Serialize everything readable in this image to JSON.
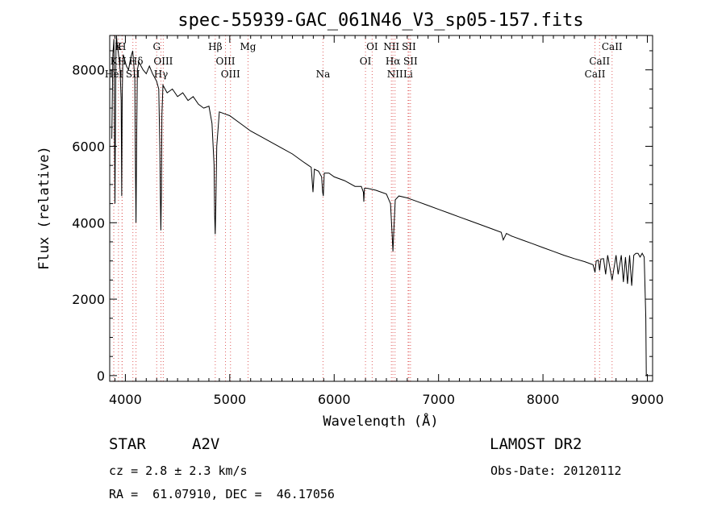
{
  "chart_data": {
    "type": "line",
    "title": "spec-55939-GAC_061N46_V3_sp05-157.fits",
    "xlabel": "Wavelength (Å)",
    "ylabel": "Flux (relative)",
    "xlim": [
      3850,
      9050
    ],
    "ylim": [
      -150,
      8900
    ],
    "xticks": [
      4000,
      5000,
      6000,
      7000,
      8000,
      9000
    ],
    "yticks": [
      0,
      2000,
      4000,
      6000,
      8000
    ],
    "grid": false,
    "line_color": "#000000",
    "marker_line_color": "#e06060",
    "series": [
      {
        "x": [
          3870,
          3880,
          3890,
          3895,
          3900,
          3905,
          3910,
          3915,
          3920,
          3930,
          3940,
          3950,
          3960,
          3965,
          3970,
          3975,
          3980,
          3990,
          4000,
          4010,
          4030,
          4050,
          4070,
          4090,
          4095,
          4102,
          4108,
          4115,
          4130,
          4150,
          4170,
          4200,
          4230,
          4260,
          4280,
          4300,
          4320,
          4330,
          4335,
          4340,
          4345,
          4350,
          4360,
          4380,
          4400,
          4450,
          4500,
          4550,
          4600,
          4650,
          4700,
          4750,
          4800,
          4830,
          4850,
          4855,
          4861,
          4867,
          4875,
          4900,
          4950,
          5000,
          5100,
          5200,
          5300,
          5400,
          5500,
          5600,
          5700,
          5780,
          5797,
          5810,
          5850,
          5880,
          5890,
          5896,
          5905,
          5950,
          6000,
          6100,
          6200,
          6260,
          6280,
          6284,
          6290,
          6320,
          6400,
          6500,
          6540,
          6555,
          6563,
          6570,
          6585,
          6620,
          6700,
          6800,
          6900,
          7000,
          7100,
          7200,
          7300,
          7400,
          7500,
          7600,
          7620,
          7650,
          7700,
          7800,
          7900,
          8000,
          8100,
          8200,
          8300,
          8400,
          8480,
          8498,
          8510,
          8530,
          8542,
          8555,
          8580,
          8600,
          8620,
          8662,
          8700,
          8720,
          8750,
          8770,
          8790,
          8810,
          8830,
          8850,
          8870,
          8890,
          8910,
          8930,
          8950,
          8970,
          8985,
          8990,
          8995,
          9000
        ],
        "y": [
          6200,
          8400,
          8800,
          7000,
          4500,
          6500,
          8600,
          8900,
          8700,
          8500,
          8300,
          8000,
          7200,
          4700,
          7300,
          8200,
          8400,
          8300,
          8200,
          8100,
          8000,
          8300,
          8500,
          7800,
          6000,
          4000,
          6200,
          8000,
          8200,
          8100,
          8000,
          7900,
          8100,
          7900,
          7800,
          7700,
          7500,
          6000,
          4700,
          3800,
          4800,
          6800,
          7600,
          7500,
          7400,
          7500,
          7300,
          7400,
          7200,
          7300,
          7100,
          7000,
          7050,
          6600,
          5500,
          4200,
          3700,
          4500,
          6000,
          6900,
          6850,
          6800,
          6600,
          6400,
          6250,
          6100,
          5950,
          5800,
          5600,
          5450,
          4800,
          5400,
          5350,
          5200,
          4800,
          4700,
          5300,
          5300,
          5200,
          5100,
          4950,
          4950,
          4800,
          4550,
          4900,
          4900,
          4850,
          4750,
          4500,
          3700,
          3250,
          3700,
          4600,
          4700,
          4650,
          4550,
          4450,
          4350,
          4250,
          4150,
          4050,
          3950,
          3850,
          3750,
          3550,
          3720,
          3650,
          3550,
          3450,
          3350,
          3250,
          3150,
          3060,
          2980,
          2900,
          2700,
          3000,
          3020,
          2750,
          3050,
          3060,
          2650,
          3150,
          2500,
          3150,
          2650,
          3150,
          2450,
          3100,
          2400,
          3150,
          2350,
          3150,
          3200,
          3200,
          3100,
          3200,
          3100,
          1500,
          0,
          0,
          0
        ]
      }
    ],
    "spectral_lines": [
      {
        "x": 3889,
        "label": "HeI",
        "row": 3
      },
      {
        "x": 3889,
        "label": "K",
        "row": 1
      },
      {
        "x": 3934,
        "label": "K",
        "row": 0
      },
      {
        "x": 3968,
        "label": "H",
        "row": 0
      },
      {
        "x": 3970,
        "label": "H",
        "row": 1
      },
      {
        "x": 4072,
        "label": "SII",
        "row": 3
      },
      {
        "x": 4102,
        "label": "Hδ",
        "row": 1
      },
      {
        "x": 4300,
        "label": "G",
        "row": 0
      },
      {
        "x": 4363,
        "label": "OIII",
        "row": 1
      },
      {
        "x": 4341,
        "label": "Hγ",
        "row": 3
      },
      {
        "x": 4861,
        "label": "Hβ",
        "row": 0
      },
      {
        "x": 4959,
        "label": "OIII",
        "row": 1
      },
      {
        "x": 5007,
        "label": "OIII",
        "row": 3
      },
      {
        "x": 5175,
        "label": "Mg",
        "row": 0
      },
      {
        "x": 5893,
        "label": "Na",
        "row": 3
      },
      {
        "x": 6300,
        "label": "OI",
        "row": 1
      },
      {
        "x": 6364,
        "label": "OI",
        "row": 0
      },
      {
        "x": 6548,
        "label": "NII",
        "row": 0
      },
      {
        "x": 6563,
        "label": "Hα",
        "row": 1
      },
      {
        "x": 6583,
        "label": "NII",
        "row": 3
      },
      {
        "x": 6716,
        "label": "SII",
        "row": 0
      },
      {
        "x": 6731,
        "label": "SII",
        "row": 1
      },
      {
        "x": 6708,
        "label": "Li",
        "row": 3
      },
      {
        "x": 8498,
        "label": "CaII",
        "row": 3
      },
      {
        "x": 8542,
        "label": "CaII",
        "row": 1
      },
      {
        "x": 8662,
        "label": "CaII",
        "row": 0
      }
    ]
  },
  "info": {
    "class_label": "STAR",
    "subclass": "A2V",
    "survey": "LAMOST DR2",
    "cz": "cz = 2.8 ± 2.3 km/s",
    "obs_date": "Obs-Date: 20120112",
    "coords": "RA =  61.07910, DEC =  46.17056"
  }
}
